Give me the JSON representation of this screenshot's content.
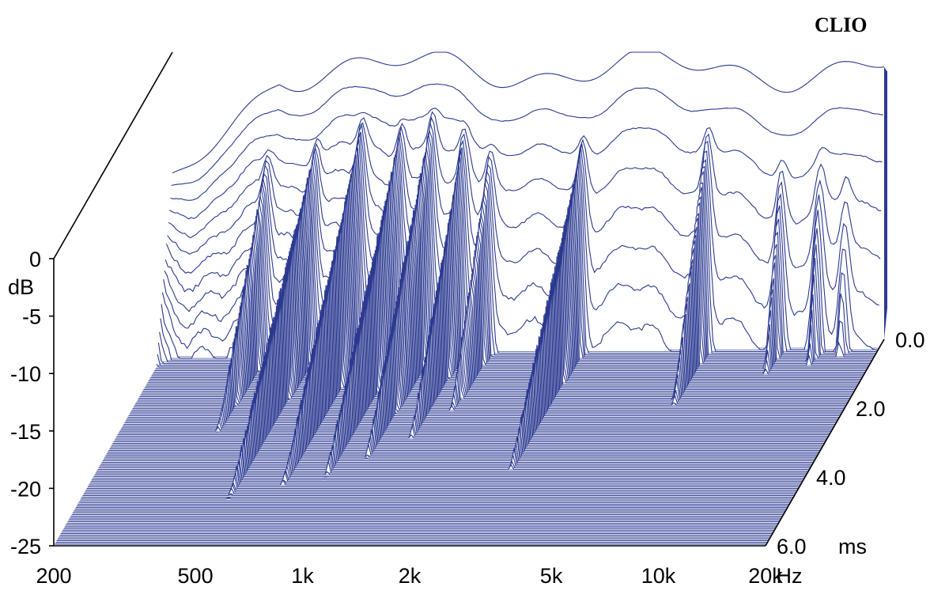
{
  "chart_data": {
    "type": "waterfall",
    "brand": "CLIO",
    "y_axis": {
      "unit": "dB",
      "ticks": [
        "0",
        "-5",
        "-10",
        "-15",
        "-20",
        "-25"
      ],
      "range": [
        -25,
        0
      ]
    },
    "x_axis": {
      "unit": "Hz",
      "scale": "log",
      "range": [
        200,
        20000
      ],
      "tick_values": [
        200,
        500,
        1000,
        2000,
        5000,
        10000,
        20000
      ],
      "tick_labels": [
        "200",
        "500",
        "1k",
        "2k",
        "5k",
        "10k",
        "20k"
      ]
    },
    "z_axis": {
      "unit": "ms",
      "range": [
        0,
        6
      ],
      "tick_values": [
        0,
        2,
        4,
        6
      ],
      "tick_labels": [
        "0.0",
        "2.0",
        "4.0",
        "6.0"
      ]
    },
    "slices": 120,
    "color": "#2b3990",
    "floor_color": "#2b3990",
    "decay": {
      "description_free_values": true,
      "base_level_db_at_0ms": -1.5,
      "resonances_hz": [
        380,
        520,
        700,
        900,
        1100,
        1350,
        1600,
        2900,
        6500,
        10500,
        13500,
        16000
      ],
      "resonance_decay_ms": [
        3.5,
        5.5,
        5.2,
        4.5,
        4.0,
        3.4,
        3.0,
        4.6,
        2.8,
        1.4,
        0.9,
        0.6
      ]
    }
  }
}
